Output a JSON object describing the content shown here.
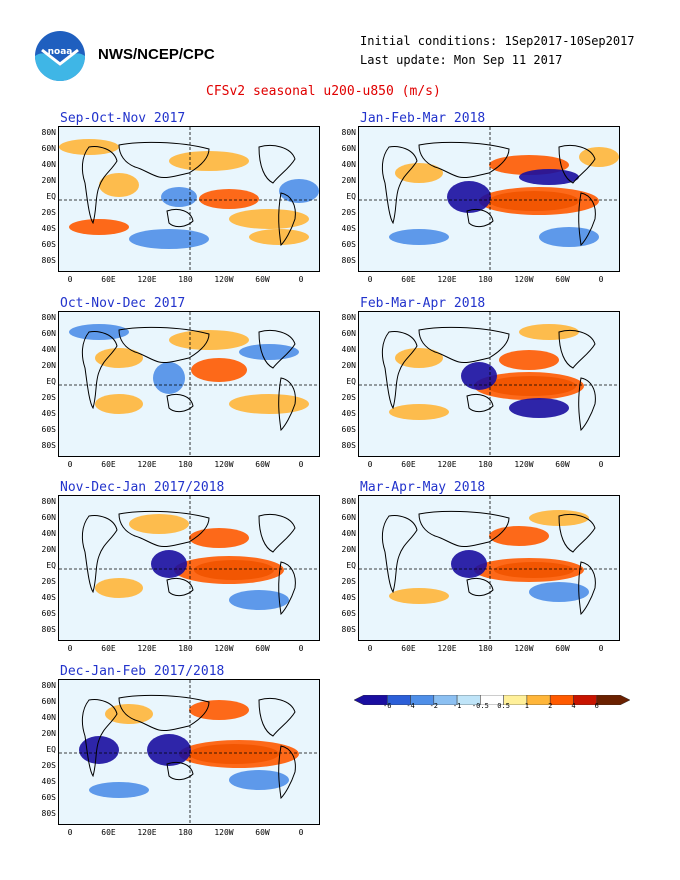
{
  "header": {
    "org": "NWS/NCEP/CPC",
    "initial_conditions": "Initial conditions: 1Sep2017-10Sep2017",
    "last_update": "Last update: Mon Sep 11 2017",
    "figure_title": "CFSv2 seasonal u200-u850 (m/s)",
    "logo_icon": "noaa-logo-icon"
  },
  "axes": {
    "lat_labels": [
      "80N",
      "60N",
      "40N",
      "20N",
      "EQ",
      "20S",
      "40S",
      "60S",
      "80S"
    ],
    "lon_labels": [
      "0",
      "60E",
      "120E",
      "180",
      "120W",
      "60W",
      "0"
    ]
  },
  "panels": [
    {
      "title": "Sep-Oct-Nov 2017"
    },
    {
      "title": "Jan-Feb-Mar 2018"
    },
    {
      "title": "Oct-Nov-Dec 2017"
    },
    {
      "title": "Feb-Mar-Apr 2018"
    },
    {
      "title": "Nov-Dec-Jan 2017/2018"
    },
    {
      "title": "Mar-Apr-May 2018"
    },
    {
      "title": "Dec-Jan-Feb 2017/2018"
    }
  ],
  "colorbar": {
    "labels": [
      "-6",
      "-4",
      "-2",
      "-1",
      "-0.5",
      "0.5",
      "1",
      "2",
      "4",
      "6"
    ],
    "colors": [
      "#1a0ea0",
      "#2c5fd8",
      "#4f8fe8",
      "#8cc0f2",
      "#bfe4f8",
      "#ffffff",
      "#fff09a",
      "#ffb63a",
      "#ff5a00",
      "#c81400",
      "#6a2000"
    ]
  },
  "palette": {
    "neg_strong": "#1a0ea0",
    "neg": "#4f8fe8",
    "neg_light": "#8cc0f2",
    "neg_pale": "#bfe4f8",
    "pos_pale": "#fff09a",
    "pos": "#ffb63a",
    "pos_strong": "#ff5a00",
    "pos_max": "#6a2000",
    "title_color": "#e00000",
    "panel_title_color": "#2233cc"
  }
}
